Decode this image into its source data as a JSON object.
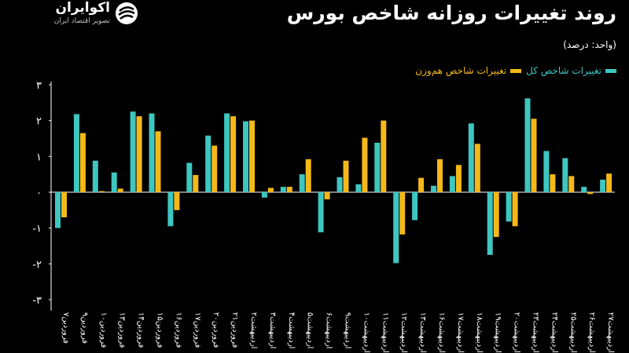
{
  "brand": {
    "name": "اکوایران",
    "tagline": "تصویر اقتصاد ایران"
  },
  "header": {
    "title": "روند تغییرات روزانه شاخص بورس",
    "unit": "(واحد: درصد)"
  },
  "colors": {
    "background": "#000000",
    "series_total": "#3ec6c0",
    "series_equal": "#f5b819",
    "text": "#ffffff"
  },
  "chart_data": {
    "type": "bar",
    "categories": [
      "فروردین۷",
      "فروردین۹",
      "فروردین۱۰",
      "فروردین۱۳",
      "فروردین۱۴",
      "فروردین۱۵",
      "فروردین۱۶",
      "فروردین۱۷",
      "فروردین۲۰",
      "فروردین۲۱",
      "اردیبهشت۲",
      "اردیبهشت۳",
      "اردیبهشت۴",
      "اردیبهشت۵",
      "اردیبهشت۶",
      "اردیبهشت۹",
      "اردیبهشت۱۰",
      "اردیبهشت۱۱",
      "اردیبهشت۱۲",
      "اردیبهشت۱۳",
      "اردیبهشت۱۶",
      "اردیبهشت۱۷",
      "اردیبهشت۱۸",
      "اردیبهشت۱۹",
      "اردیبهشت۲۰",
      "اردیبهشت۲۳",
      "اردیبهشت۲۴",
      "اردیبهشت۲۵",
      "اردیبهشت۲۶",
      "اردیبهشت۲۷"
    ],
    "series": [
      {
        "name": "تغییرات شاخص کل",
        "color": "#3ec6c0",
        "values": [
          -1.0,
          2.18,
          0.88,
          0.55,
          2.25,
          2.2,
          -0.95,
          0.82,
          1.58,
          2.2,
          1.98,
          -0.15,
          0.15,
          0.5,
          -1.12,
          0.42,
          0.22,
          1.38,
          -1.98,
          -0.78,
          0.18,
          0.45,
          1.92,
          -1.75,
          -0.82,
          2.62,
          1.15,
          0.95,
          0.15,
          0.35
        ]
      },
      {
        "name": "تغییرات شاخص هم‌وزن",
        "color": "#f5b819",
        "values": [
          -0.7,
          1.65,
          0.03,
          0.1,
          2.12,
          1.7,
          -0.5,
          0.48,
          1.3,
          2.12,
          2.0,
          0.12,
          0.15,
          0.92,
          -0.2,
          0.88,
          1.52,
          2.0,
          -1.18,
          0.4,
          0.92,
          0.76,
          1.35,
          -1.25,
          -0.95,
          2.05,
          0.5,
          0.45,
          -0.05,
          0.52
        ]
      }
    ],
    "y_ticks": [
      "۳",
      "۲",
      "۱",
      "۰",
      "-۱",
      "-۲",
      "-۳"
    ],
    "y_tick_values": [
      3,
      2,
      1,
      0,
      -1,
      -2,
      -3
    ],
    "ylim": [
      -3,
      3
    ],
    "grid": false,
    "legend_position": "top-right"
  }
}
